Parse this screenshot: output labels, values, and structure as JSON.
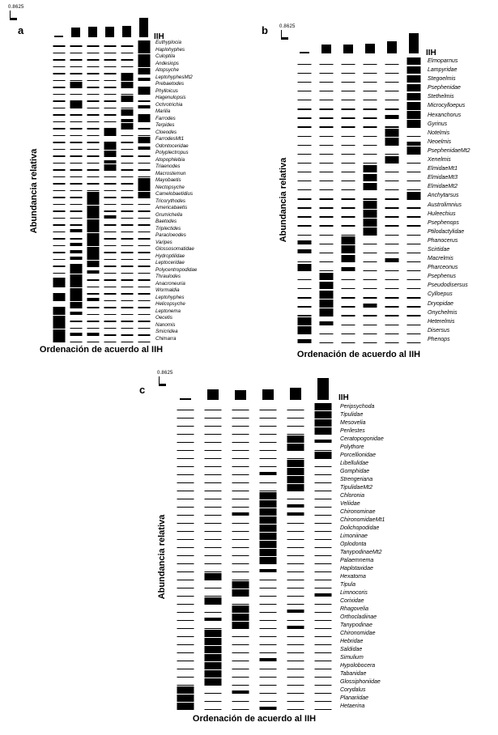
{
  "chart_data": [
    {
      "type": "heatmap",
      "panel": "a",
      "panel_letter": "a",
      "scale_label": "0.8625",
      "scale_max": 0.8625,
      "iih_label": "IIH",
      "xlabel": "Ordenación de acuerdo al IIH",
      "ylabel": "Abundancia relativa",
      "n_sites": 6,
      "iih_bars": [
        0.07,
        0.5,
        0.55,
        0.55,
        0.6,
        1.0
      ],
      "taxa": [
        "Euthyplocia",
        "Haplohyphes",
        "Culoptila",
        "Andesiops",
        "Atopsyche",
        "LeptohyphesMt2",
        "Prebaetodes",
        "Phylloicus",
        "Hagenulopsis",
        "Ochrotrichia",
        "Marilia",
        "Farrodes",
        "Terpides",
        "Cloeodes",
        "FarrodesMt1",
        "Odontoceridae",
        "Polyplectropus",
        "Atopophlebia",
        "Triaenodes",
        "Macrostemun",
        "Mayobaetis",
        "Nectopsyche",
        "Camelobaetidius",
        "Tricorythodes",
        "Americabaetis",
        "Grumichella",
        "Baetodes",
        "Triplectides",
        "Paracloeodes",
        "Varipes",
        "Glossosomatidae",
        "Hydroptilidae",
        "Leptoceridae",
        "Polycentropodidae",
        "Thraulodes",
        "Anacroneuria",
        "Wormaldia",
        "Leptohyphes",
        "Helicopsyche",
        "Leptonema",
        "Oecetis",
        "Nanomis",
        "Smicridea",
        "Chimarra"
      ],
      "matrix": [
        [
          0,
          0,
          0,
          0,
          0,
          1
        ],
        [
          0,
          0,
          0,
          0,
          0,
          1
        ],
        [
          0,
          0,
          0,
          0,
          0,
          1
        ],
        [
          0,
          0,
          0,
          0,
          0,
          1
        ],
        [
          0,
          0,
          0,
          0,
          0,
          1
        ],
        [
          0,
          0,
          0,
          0,
          1,
          0.5
        ],
        [
          0,
          1,
          0,
          0,
          1,
          0
        ],
        [
          0,
          0,
          0,
          0,
          0,
          1
        ],
        [
          0,
          0,
          0,
          0,
          1,
          0
        ],
        [
          0,
          1,
          0,
          0,
          0,
          0.5
        ],
        [
          0,
          0,
          0,
          0,
          1,
          0
        ],
        [
          0,
          0,
          0,
          0,
          0.5,
          1
        ],
        [
          0,
          0,
          0,
          0,
          1,
          0
        ],
        [
          0,
          0,
          0,
          1,
          0,
          0
        ],
        [
          0,
          0,
          0,
          0,
          0,
          1
        ],
        [
          0,
          0,
          0,
          1,
          0,
          0.5
        ],
        [
          0,
          0,
          0,
          1,
          0,
          0
        ],
        [
          0,
          0,
          0,
          0.5,
          0,
          0
        ],
        [
          0,
          0,
          0,
          1,
          0,
          0
        ],
        [
          0,
          0,
          0,
          0,
          0,
          0
        ],
        [
          0,
          0,
          0,
          0,
          0,
          1
        ],
        [
          0,
          0,
          0,
          0,
          0,
          1
        ],
        [
          0,
          0,
          1,
          0,
          0,
          1
        ],
        [
          0,
          0,
          1,
          0,
          0,
          0
        ],
        [
          0,
          0,
          1,
          0,
          0,
          0
        ],
        [
          0,
          0,
          1,
          0.5,
          0,
          0
        ],
        [
          0,
          0,
          1,
          0,
          0,
          0
        ],
        [
          0,
          0.5,
          1,
          0,
          0,
          0
        ],
        [
          0,
          0,
          1,
          0,
          0,
          0
        ],
        [
          0,
          0.5,
          1,
          0,
          0,
          0
        ],
        [
          0,
          0.5,
          1,
          0,
          0,
          0
        ],
        [
          0,
          0.5,
          1,
          0,
          0,
          0
        ],
        [
          0,
          0.5,
          1,
          0,
          0,
          0
        ],
        [
          0,
          1,
          0.5,
          0,
          0,
          0
        ],
        [
          0.5,
          1,
          0,
          0,
          0,
          0
        ],
        [
          1,
          1,
          0,
          0,
          0,
          0
        ],
        [
          0,
          1,
          0,
          0,
          0,
          0
        ],
        [
          1,
          1,
          0.5,
          0,
          0,
          0
        ],
        [
          0,
          1,
          0,
          0,
          0,
          0
        ],
        [
          1,
          0.5,
          0,
          0,
          0,
          0
        ],
        [
          1,
          0,
          0,
          0,
          0,
          0
        ],
        [
          1,
          0,
          0,
          0,
          0,
          0
        ],
        [
          1,
          0.5,
          0.5,
          0,
          0,
          0
        ],
        [
          1,
          0,
          0,
          0,
          0,
          0
        ]
      ]
    },
    {
      "type": "heatmap",
      "panel": "b",
      "panel_letter": "b",
      "scale_label": "0.8625",
      "scale_max": 0.8625,
      "iih_label": "IIH",
      "xlabel": "Ordenación de acuerdo al IIH",
      "ylabel": "Abundancia relativa",
      "n_sites": 6,
      "iih_bars": [
        0.07,
        0.45,
        0.45,
        0.5,
        0.6,
        1.0
      ],
      "taxa": [
        "Elmoparnus",
        "Lampyridae",
        "Stegoelmis",
        "Psephenidae",
        "Stethelmis",
        "Microcylloepus",
        "Hexanchorus",
        "Gyrinus",
        "Notelmis",
        "Neoelmis",
        "PsephenidaeMt2",
        "Xenelmis",
        "ElmidaeMt1",
        "ElmidaeMt3",
        "ElmidaeMt2",
        "Anchytarsus",
        "Austrolimnius",
        "Huleechius",
        "Psephenops",
        "Ptilodactylidae",
        "Phanocerus",
        "Scirtidae",
        "Macrelmis",
        "Pharceonus",
        "Psephenus",
        "Pseudodisersus",
        "Cylloepus",
        "Dryopidae",
        "Onychelmis",
        "Heterelmis",
        "Disersus",
        "Phenops"
      ],
      "matrix": [
        [
          0,
          0,
          0,
          0,
          0,
          1
        ],
        [
          0,
          0,
          0,
          0,
          0,
          1
        ],
        [
          0,
          0,
          0,
          0,
          0,
          1
        ],
        [
          0,
          0,
          0,
          0,
          0,
          1
        ],
        [
          0,
          0,
          0,
          0,
          0,
          1
        ],
        [
          0,
          0,
          0,
          0,
          0,
          1
        ],
        [
          0,
          0,
          0,
          0,
          0.5,
          1
        ],
        [
          0,
          0,
          0,
          0,
          0,
          1
        ],
        [
          0,
          0,
          0,
          0,
          1,
          0
        ],
        [
          0,
          0,
          0,
          0,
          1,
          0.5
        ],
        [
          0,
          0,
          0,
          0,
          0,
          1
        ],
        [
          0,
          0,
          0,
          0,
          1,
          0
        ],
        [
          0,
          0,
          0,
          1,
          0,
          0
        ],
        [
          0,
          0,
          0,
          1,
          0,
          0
        ],
        [
          0,
          0,
          0,
          1,
          0,
          0
        ],
        [
          0,
          0,
          0,
          0,
          0,
          1
        ],
        [
          0,
          0,
          0,
          1,
          0,
          0
        ],
        [
          0,
          0,
          0,
          1,
          0,
          0
        ],
        [
          0,
          0,
          0,
          1,
          0,
          0
        ],
        [
          0,
          0,
          0,
          1,
          0,
          0
        ],
        [
          0.5,
          0,
          1,
          0,
          0,
          0
        ],
        [
          0.5,
          0,
          1,
          0,
          0,
          0
        ],
        [
          0,
          0,
          1,
          0,
          0.5,
          0
        ],
        [
          1,
          0,
          0.5,
          0,
          0,
          0
        ],
        [
          0,
          1,
          0,
          0,
          0,
          0
        ],
        [
          0,
          1,
          0,
          0,
          0,
          0
        ],
        [
          0,
          1,
          0,
          0,
          0,
          0
        ],
        [
          0,
          1,
          0,
          0.5,
          0,
          0
        ],
        [
          0,
          1,
          0,
          0,
          0,
          0
        ],
        [
          1,
          0.5,
          0,
          0,
          0,
          0
        ],
        [
          1,
          0,
          0,
          0,
          0,
          0
        ],
        [
          0.5,
          0,
          0,
          0,
          0,
          0
        ]
      ]
    },
    {
      "type": "heatmap",
      "panel": "c",
      "panel_letter": "c",
      "scale_label": "0.8625",
      "scale_max": 0.8625,
      "iih_label": "IIH",
      "xlabel": "Ordenación de acuerdo al IIH",
      "ylabel": "Abundancia relativa",
      "n_sites": 6,
      "iih_bars": [
        0.07,
        0.5,
        0.45,
        0.5,
        0.55,
        1.0
      ],
      "taxa": [
        "Peripsychoda",
        "Tipulidae",
        "Mesovelia",
        "Perilestes",
        "Ceratopogonidae",
        "Polythore",
        "Porcellionidae",
        "Libellulidae",
        "Gomphidae",
        "Strengeriana",
        "TipulidaeMt2",
        "Chloronia",
        "Veliidae",
        "Chironominae",
        "ChironomidaeMt1",
        "Dolichopodidae",
        "Limoniinae",
        "Oplodonta",
        "TanypodinaeMt2",
        "Palaemnema",
        "Haplotaxidae",
        "Hexatoma",
        "Tipula",
        "Limnocoris",
        "Corixidae",
        "Rhagovelia",
        "Orthocladiinae",
        "Tanypodinae",
        "Chironomidae",
        "Hebridae",
        "Saldidae",
        "Simulium",
        "Hypolobocera",
        "Tabanidae",
        "Glossiphoniidae",
        "Corydalus",
        "Planariidae",
        "Hetaerina"
      ],
      "matrix": [
        [
          0,
          0,
          0,
          0,
          0,
          1
        ],
        [
          0,
          0,
          0,
          0,
          0,
          1
        ],
        [
          0,
          0,
          0,
          0,
          0,
          1
        ],
        [
          0,
          0,
          0,
          0,
          0,
          1
        ],
        [
          0,
          0,
          0,
          0,
          1,
          0.5
        ],
        [
          0,
          0,
          0,
          0,
          1,
          0
        ],
        [
          0,
          0,
          0,
          0,
          0,
          1
        ],
        [
          0,
          0,
          0,
          0,
          1,
          0
        ],
        [
          0,
          0,
          0,
          0.5,
          1,
          0
        ],
        [
          0,
          0,
          0,
          0,
          1,
          0
        ],
        [
          0,
          0,
          0,
          0,
          1,
          0
        ],
        [
          0,
          0,
          0,
          1,
          0,
          0
        ],
        [
          0,
          0,
          0,
          1,
          0.5,
          0
        ],
        [
          0,
          0,
          0.5,
          1,
          0.5,
          0
        ],
        [
          0,
          0,
          0,
          1,
          0,
          0
        ],
        [
          0,
          0,
          0,
          1,
          0,
          0
        ],
        [
          0,
          0,
          0,
          1,
          0,
          0
        ],
        [
          0,
          0,
          0,
          1,
          0,
          0
        ],
        [
          0,
          0,
          0,
          1,
          0,
          0
        ],
        [
          0,
          0,
          0,
          1,
          0,
          0
        ],
        [
          0,
          0,
          0,
          0.5,
          0,
          0
        ],
        [
          0,
          1,
          0,
          0,
          0,
          0
        ],
        [
          0,
          0,
          1,
          0,
          0,
          0
        ],
        [
          0,
          0,
          1,
          0,
          0,
          0.5
        ],
        [
          0,
          1,
          0,
          0,
          0,
          0
        ],
        [
          0,
          0,
          1,
          0,
          0.5,
          0
        ],
        [
          0,
          0.5,
          1,
          0,
          0,
          0
        ],
        [
          0,
          0,
          1,
          0,
          0.5,
          0
        ],
        [
          0,
          1,
          0,
          0,
          0,
          0
        ],
        [
          0,
          1,
          0,
          0,
          0,
          0
        ],
        [
          0,
          1,
          0,
          0,
          0,
          0
        ],
        [
          0,
          1,
          0,
          0.5,
          0,
          0
        ],
        [
          0,
          1,
          0,
          0,
          0,
          0
        ],
        [
          0,
          1,
          0,
          0,
          0,
          0
        ],
        [
          0,
          1,
          0,
          0,
          0,
          0
        ],
        [
          1,
          0,
          0.5,
          0,
          0,
          0
        ],
        [
          1,
          0,
          0,
          0,
          0,
          0
        ],
        [
          1,
          0,
          0,
          0.5,
          0,
          0
        ]
      ]
    }
  ]
}
